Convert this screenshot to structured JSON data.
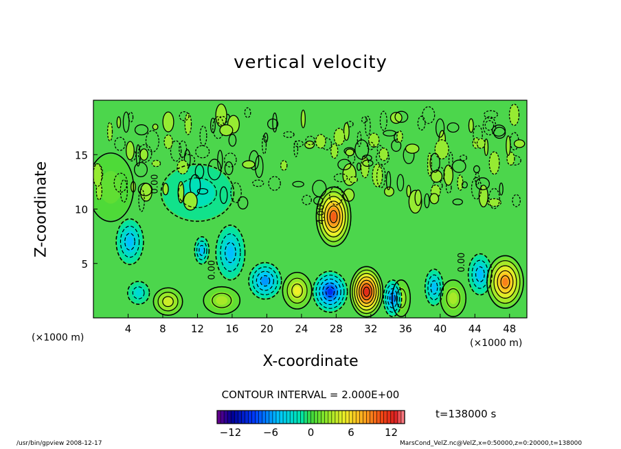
{
  "chart_data": {
    "type": "heatmap",
    "title": "vertical velocity",
    "xlabel": "X-coordinate",
    "ylabel": "Z-coordinate",
    "x_units": "(×1000 m)",
    "xlim": [
      0,
      50
    ],
    "ylim": [
      0,
      20
    ],
    "x_ticks": [
      4,
      8,
      12,
      16,
      20,
      24,
      28,
      32,
      36,
      40,
      44,
      48
    ],
    "y_ticks": [
      5,
      10,
      15
    ],
    "contour_interval_label": "CONTOUR INTERVAL = 2.000E+00",
    "contour_labels": [
      {
        "text": "4.00",
        "x": 26.6,
        "z": 9.5
      },
      {
        "text": "0.00",
        "x": 7.4,
        "z": 12.3
      },
      {
        "text": "0.00",
        "x": 14.0,
        "z": 4.4
      },
      {
        "text": "0.00",
        "x": 42.8,
        "z": 5.1
      }
    ],
    "features": [
      {
        "x": 27.7,
        "z": 9.3,
        "value": 10,
        "w": 1.9,
        "h": 2.6
      },
      {
        "x": 31.5,
        "z": 2.4,
        "value": 12,
        "w": 1.8,
        "h": 2.2
      },
      {
        "x": 47.5,
        "z": 3.3,
        "value": 9,
        "w": 2.0,
        "h": 2.3
      },
      {
        "x": 23.5,
        "z": 2.5,
        "value": 5,
        "w": 1.6,
        "h": 1.6
      },
      {
        "x": 8.6,
        "z": 1.5,
        "value": 4,
        "w": 1.6,
        "h": 1.2
      },
      {
        "x": 14.8,
        "z": 1.6,
        "value": 3,
        "w": 2.0,
        "h": 1.2
      },
      {
        "x": 35.5,
        "z": 1.8,
        "value": 3,
        "w": 1.0,
        "h": 1.6
      },
      {
        "x": 41.5,
        "z": 1.8,
        "value": 3,
        "w": 1.4,
        "h": 1.6
      },
      {
        "x": 27.3,
        "z": 2.4,
        "value": -9,
        "w": 1.9,
        "h": 1.8
      },
      {
        "x": 34.5,
        "z": 1.8,
        "value": -7,
        "w": 1.0,
        "h": 1.6
      },
      {
        "x": 19.8,
        "z": 3.4,
        "value": -6,
        "w": 1.8,
        "h": 1.6
      },
      {
        "x": 15.8,
        "z": 6.0,
        "value": -5,
        "w": 1.6,
        "h": 2.4
      },
      {
        "x": 4.2,
        "z": 7.0,
        "value": -5,
        "w": 1.5,
        "h": 2.0
      },
      {
        "x": 12.5,
        "z": 6.2,
        "value": -5,
        "w": 0.8,
        "h": 1.2
      },
      {
        "x": 39.3,
        "z": 2.8,
        "value": -5,
        "w": 1.0,
        "h": 1.6
      },
      {
        "x": 44.6,
        "z": 4.0,
        "value": -5,
        "w": 1.3,
        "h": 1.8
      },
      {
        "x": 5.2,
        "z": 2.3,
        "value": -3,
        "w": 1.2,
        "h": 1.0
      },
      {
        "x": 12.0,
        "z": 11.5,
        "value": -2,
        "w": 4.0,
        "h": 2.5
      },
      {
        "x": 2.0,
        "z": 12.0,
        "value": 1,
        "w": 2.5,
        "h": 3.0
      }
    ],
    "colorbar": {
      "min": -14,
      "max": 14,
      "ticks": [
        -12,
        -6,
        0,
        6,
        12
      ],
      "tick_labels": [
        "−12",
        "−6",
        "0",
        "6",
        "12"
      ]
    }
  },
  "time_label": "t=138000 s",
  "footer_left": "/usr/bin/gpview  2008-12-17",
  "footer_right": "MarsCond_VelZ.nc@VelZ,x=0:50000,z=0:20000,t=138000"
}
